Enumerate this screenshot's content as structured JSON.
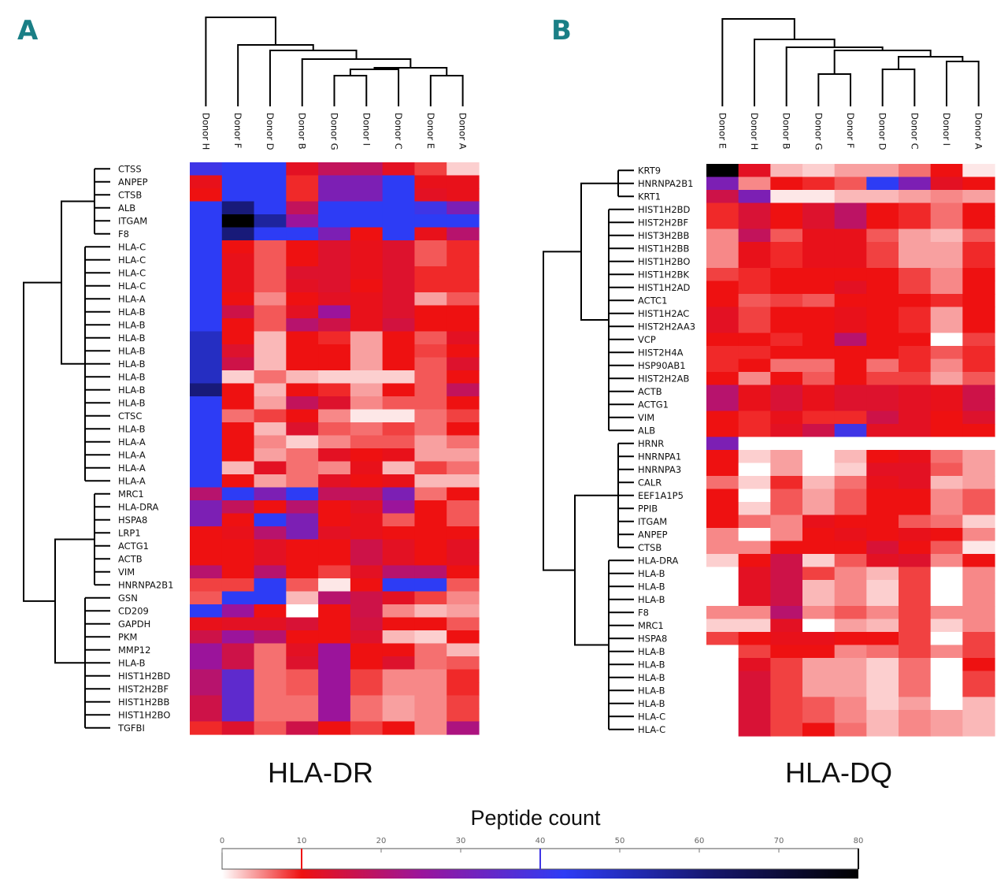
{
  "chart_data": [
    {
      "type": "heatmap",
      "panel_label": "A",
      "title": "HLA-DR",
      "value_label": "Peptide count",
      "columns": [
        "Donor H",
        "Donor F",
        "Donor D",
        "Donor B",
        "Donor G",
        "Donor I",
        "Donor C",
        "Donor E",
        "Donor A"
      ],
      "rows": [
        "CTSS",
        "ANPEP",
        "CTSB",
        "ALB",
        "ITGAM",
        "F8",
        "HLA-C",
        "HLA-C",
        "HLA-C",
        "HLA-C",
        "HLA-A",
        "HLA-B",
        "HLA-B",
        "HLA-B",
        "HLA-B",
        "HLA-B",
        "HLA-B",
        "HLA-B",
        "HLA-B",
        "CTSC",
        "HLA-B",
        "HLA-A",
        "HLA-A",
        "HLA-A",
        "HLA-A",
        "MRC1",
        "HLA-DRA",
        "HSPA8",
        "LRP1",
        "ACTG1",
        "ACTB",
        "VIM",
        "HNRNPA2B1",
        "GSN",
        "CD209",
        "GAPDH",
        "PKM",
        "MMP12",
        "HLA-B",
        "HIST1H2BD",
        "HIST2H2BF",
        "HIST1H2BB",
        "HIST1H2BO",
        "TGFBI"
      ],
      "values": [
        [
          40,
          43,
          43,
          12,
          18,
          19,
          12,
          8,
          2
        ],
        [
          11,
          43,
          43,
          9,
          30,
          30,
          43,
          11,
          11
        ],
        [
          10,
          43,
          43,
          9,
          30,
          30,
          43,
          12,
          11
        ],
        [
          43,
          60,
          43,
          18,
          43,
          43,
          43,
          40,
          30
        ],
        [
          43,
          80,
          55,
          25,
          43,
          43,
          43,
          43,
          43
        ],
        [
          43,
          60,
          43,
          43,
          30,
          10,
          43,
          11,
          20
        ],
        [
          43,
          10,
          7,
          10,
          13,
          11,
          13,
          7,
          9
        ],
        [
          43,
          11,
          7,
          10,
          13,
          11,
          13,
          7,
          9
        ],
        [
          43,
          11,
          7,
          13,
          13,
          11,
          13,
          9,
          9
        ],
        [
          43,
          11,
          7,
          12,
          13,
          10,
          13,
          9,
          9
        ],
        [
          43,
          10,
          5,
          10,
          12,
          11,
          13,
          4,
          7
        ],
        [
          43,
          16,
          7,
          12,
          25,
          11,
          13,
          10,
          10
        ],
        [
          43,
          10,
          7,
          20,
          16,
          11,
          15,
          10,
          10
        ],
        [
          50,
          10,
          3,
          10,
          9,
          4,
          10,
          7,
          12
        ],
        [
          50,
          13,
          3,
          10,
          10,
          4,
          10,
          8,
          10
        ],
        [
          50,
          16,
          3,
          10,
          10,
          4,
          10,
          7,
          13
        ],
        [
          50,
          2,
          6,
          3,
          2,
          2,
          2,
          7,
          10
        ],
        [
          60,
          10,
          3,
          10,
          9,
          4,
          10,
          7,
          18
        ],
        [
          43,
          10,
          4,
          18,
          13,
          5,
          7,
          7,
          10
        ],
        [
          43,
          6,
          8,
          10,
          5,
          1,
          1,
          6,
          8
        ],
        [
          43,
          10,
          3,
          13,
          7,
          6,
          8,
          6,
          10
        ],
        [
          43,
          10,
          5,
          2,
          5,
          7,
          7,
          4,
          6
        ],
        [
          43,
          10,
          4,
          6,
          12,
          10,
          11,
          4,
          4
        ],
        [
          43,
          3,
          12,
          6,
          5,
          11,
          3,
          8,
          6
        ],
        [
          43,
          10,
          4,
          6,
          12,
          10,
          11,
          3,
          3
        ],
        [
          20,
          43,
          30,
          43,
          18,
          18,
          30,
          6,
          10
        ],
        [
          30,
          18,
          10,
          20,
          10,
          12,
          25,
          10,
          7
        ],
        [
          30,
          10,
          43,
          30,
          10,
          11,
          7,
          10,
          7
        ],
        [
          10,
          11,
          20,
          30,
          12,
          11,
          10,
          10,
          10
        ],
        [
          10,
          10,
          12,
          10,
          10,
          16,
          12,
          10,
          12
        ],
        [
          10,
          10,
          12,
          10,
          10,
          16,
          12,
          10,
          12
        ],
        [
          20,
          10,
          20,
          10,
          8,
          12,
          20,
          20,
          10
        ],
        [
          8,
          8,
          43,
          7,
          1,
          10,
          43,
          43,
          7
        ],
        [
          7,
          43,
          43,
          3,
          20,
          16,
          12,
          8,
          5
        ],
        [
          43,
          25,
          10,
          0,
          10,
          16,
          5,
          3,
          4
        ],
        [
          11,
          12,
          12,
          14,
          10,
          15,
          10,
          10,
          7
        ],
        [
          16,
          25,
          20,
          10,
          10,
          13,
          3,
          2,
          10
        ],
        [
          25,
          16,
          6,
          12,
          25,
          10,
          10,
          6,
          3
        ],
        [
          25,
          16,
          6,
          13,
          25,
          10,
          13,
          6,
          7
        ],
        [
          20,
          35,
          6,
          7,
          25,
          8,
          5,
          5,
          9
        ],
        [
          20,
          35,
          6,
          7,
          25,
          8,
          5,
          5,
          9
        ],
        [
          16,
          35,
          6,
          6,
          25,
          6,
          4,
          5,
          8
        ],
        [
          16,
          35,
          6,
          6,
          25,
          6,
          4,
          5,
          8
        ],
        [
          9,
          13,
          7,
          16,
          10,
          8,
          10,
          5,
          22
        ]
      ]
    },
    {
      "type": "heatmap",
      "panel_label": "B",
      "title": "HLA-DQ",
      "value_label": "Peptide count",
      "columns": [
        "Donor E",
        "Donor H",
        "Donor B",
        "Donor G",
        "Donor F",
        "Donor D",
        "Donor C",
        "Donor I",
        "Donor A"
      ],
      "rows": [
        "KRT9",
        "HNRNPA2B1",
        "KRT1",
        "HIST1H2BD",
        "HIST2H2BF",
        "HIST3H2BB",
        "HIST1H2BB",
        "HIST1H2BO",
        "HIST1H2BK",
        "HIST1H2AD",
        "ACTC1",
        "HIST1H2AC",
        "HIST2H2AA3",
        "VCP",
        "HIST2H4A",
        "HSP90AB1",
        "HIST2H2AB",
        "ACTB",
        "ACTG1",
        "VIM",
        "ALB",
        "HRNR",
        "HNRNPA1",
        "HNRNPA3",
        "CALR",
        "EEF1A1P5",
        "PPIB",
        "ITGAM",
        "ANPEP",
        "CTSB",
        "HLA-DRA",
        "HLA-B",
        "HLA-B",
        "HLA-B",
        "F8",
        "MRC1",
        "HSPA8",
        "HLA-B",
        "HLA-B",
        "HLA-B",
        "HLA-B",
        "HLA-B",
        "HLA-C",
        "HLA-C"
      ],
      "values": [
        [
          80,
          12,
          3,
          2,
          4,
          4,
          6,
          10,
          1
        ],
        [
          30,
          5,
          10,
          9,
          7,
          43,
          30,
          12,
          10
        ],
        [
          16,
          30,
          1,
          1,
          3,
          3,
          4,
          5,
          4
        ],
        [
          9,
          14,
          10,
          13,
          19,
          10,
          9,
          6,
          10
        ],
        [
          9,
          14,
          10,
          13,
          19,
          10,
          9,
          6,
          10
        ],
        [
          5,
          18,
          7,
          11,
          11,
          7,
          4,
          3,
          7
        ],
        [
          5,
          11,
          9,
          11,
          11,
          8,
          4,
          4,
          9
        ],
        [
          5,
          11,
          9,
          11,
          11,
          8,
          4,
          4,
          9
        ],
        [
          8,
          9,
          10,
          10,
          10,
          10,
          8,
          5,
          10
        ],
        [
          10,
          9,
          10,
          10,
          12,
          10,
          8,
          5,
          10
        ],
        [
          10,
          7,
          8,
          7,
          10,
          10,
          10,
          9,
          10
        ],
        [
          12,
          8,
          10,
          10,
          11,
          10,
          9,
          4,
          10
        ],
        [
          12,
          8,
          10,
          10,
          11,
          10,
          9,
          4,
          10
        ],
        [
          10,
          10,
          9,
          10,
          20,
          10,
          10,
          0,
          8
        ],
        [
          9,
          9,
          10,
          10,
          10,
          10,
          9,
          7,
          9
        ],
        [
          9,
          10,
          6,
          6,
          10,
          6,
          9,
          5,
          9
        ],
        [
          10,
          5,
          10,
          7,
          10,
          8,
          8,
          4,
          7
        ],
        [
          20,
          11,
          14,
          11,
          13,
          13,
          12,
          11,
          16
        ],
        [
          20,
          11,
          14,
          11,
          13,
          13,
          12,
          11,
          16
        ],
        [
          10,
          9,
          11,
          9,
          9,
          16,
          12,
          10,
          13
        ],
        [
          10,
          9,
          12,
          16,
          40,
          12,
          12,
          10,
          10
        ],
        [
          30,
          0,
          0,
          0,
          0,
          0,
          0,
          0,
          0
        ],
        [
          10,
          2,
          4,
          0,
          3,
          10,
          11,
          6,
          4
        ],
        [
          10,
          0,
          4,
          0,
          2,
          12,
          12,
          7,
          4
        ],
        [
          6,
          2,
          9,
          3,
          6,
          11,
          12,
          3,
          4
        ],
        [
          10,
          0,
          7,
          4,
          7,
          10,
          10,
          5,
          7
        ],
        [
          10,
          2,
          7,
          4,
          7,
          10,
          10,
          5,
          7
        ],
        [
          10,
          6,
          5,
          11,
          10,
          10,
          7,
          6,
          2
        ],
        [
          5,
          0,
          5,
          10,
          11,
          10,
          11,
          10,
          5
        ],
        [
          5,
          5,
          10,
          10,
          10,
          14,
          10,
          7,
          1
        ],
        [
          2,
          10,
          16,
          2,
          7,
          12,
          13,
          5,
          10
        ],
        [
          0,
          12,
          16,
          8,
          5,
          3,
          8,
          0,
          5
        ],
        [
          0,
          12,
          16,
          3,
          5,
          2,
          8,
          0,
          5
        ],
        [
          0,
          12,
          16,
          3,
          5,
          2,
          8,
          0,
          5
        ],
        [
          5,
          5,
          20,
          5,
          7,
          5,
          8,
          5,
          5
        ],
        [
          2,
          2,
          12,
          0,
          4,
          3,
          8,
          2,
          5
        ],
        [
          8,
          10,
          11,
          11,
          10,
          10,
          8,
          0,
          8
        ],
        [
          0,
          8,
          10,
          10,
          5,
          6,
          8,
          5,
          8
        ],
        [
          0,
          12,
          8,
          4,
          4,
          2,
          6,
          0,
          10
        ],
        [
          0,
          14,
          8,
          4,
          4,
          2,
          6,
          0,
          8
        ],
        [
          0,
          14,
          8,
          4,
          4,
          2,
          6,
          0,
          8
        ],
        [
          0,
          14,
          8,
          7,
          5,
          2,
          4,
          0,
          3
        ],
        [
          0,
          14,
          8,
          7,
          5,
          3,
          5,
          4,
          3
        ],
        [
          0,
          14,
          8,
          10,
          6,
          3,
          5,
          4,
          3
        ]
      ]
    }
  ],
  "color_scale": {
    "title": "Peptide count",
    "min": 0,
    "max": 80,
    "ticks": [
      0,
      10,
      20,
      30,
      40,
      50,
      60,
      70,
      80
    ],
    "tick_labels": [
      "0",
      "10",
      "20",
      "30",
      "40",
      "50",
      "60",
      "70",
      "80"
    ],
    "markers": [
      10,
      40,
      80
    ],
    "stops": [
      {
        "value": 0,
        "color": "#ffffff"
      },
      {
        "value": 10,
        "color": "#ee1111"
      },
      {
        "value": 25,
        "color": "#9b149b"
      },
      {
        "value": 43,
        "color": "#2d3cf5"
      },
      {
        "value": 62,
        "color": "#16166a"
      },
      {
        "value": 80,
        "color": "#000000"
      }
    ]
  },
  "colors": {
    "panel_letter": "#1a7f86",
    "text": "#111111",
    "dendrogram": "#000000"
  }
}
